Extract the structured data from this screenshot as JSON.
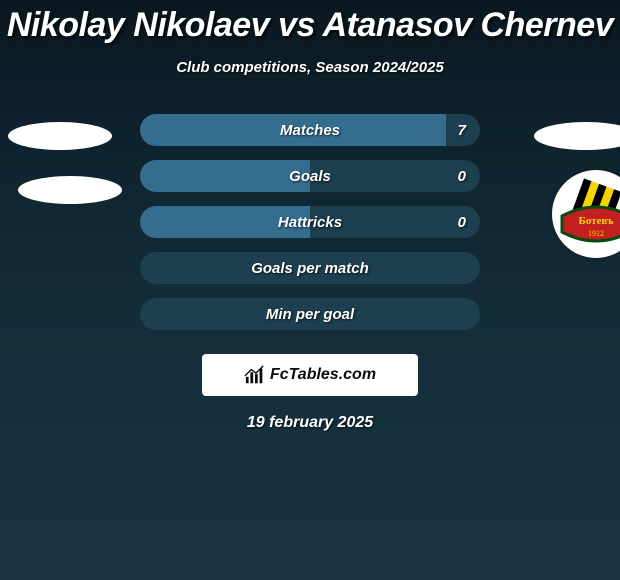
{
  "title": "Nikolay Nikolaev vs Atanasov Chernev",
  "subtitle": "Club competitions, Season 2024/2025",
  "dateLine": "19 february 2025",
  "attribution": {
    "brand": "FcTables.com"
  },
  "club": {
    "label": "Ботевъ",
    "year": "1912",
    "colors": {
      "outerRing": "#ffffff",
      "bannerBg": "#c02020",
      "bannerBorder": "#0a4a10",
      "stripeBlack": "#000000",
      "stripeYellow": "#f5d400",
      "text": "#f5d400"
    }
  },
  "chart": {
    "leftColor": "#356d8f",
    "rightColor": "#1d3f50",
    "rows": [
      {
        "label": "Matches",
        "leftPct": 90,
        "rightPct": 10,
        "valueRight": "7"
      },
      {
        "label": "Goals",
        "leftPct": 50,
        "rightPct": 50,
        "valueRight": "0"
      },
      {
        "label": "Hattricks",
        "leftPct": 50,
        "rightPct": 50,
        "valueRight": "0"
      },
      {
        "label": "Goals per match",
        "leftPct": 0,
        "rightPct": 100,
        "valueRight": ""
      },
      {
        "label": "Min per goal",
        "leftPct": 0,
        "rightPct": 100,
        "valueRight": ""
      }
    ]
  },
  "style": {
    "titleFontSize": 34,
    "subtitleFontSize": 15,
    "barLabelFontSize": 15,
    "barHeight": 32,
    "barRadius": 16,
    "barGap": 14,
    "barContainerWidth": 340,
    "pageWidth": 620,
    "pageHeight": 580,
    "bgGradientTop": "#0a1820",
    "bgGradientBottom": "#173440",
    "textColor": "#ffffff"
  }
}
